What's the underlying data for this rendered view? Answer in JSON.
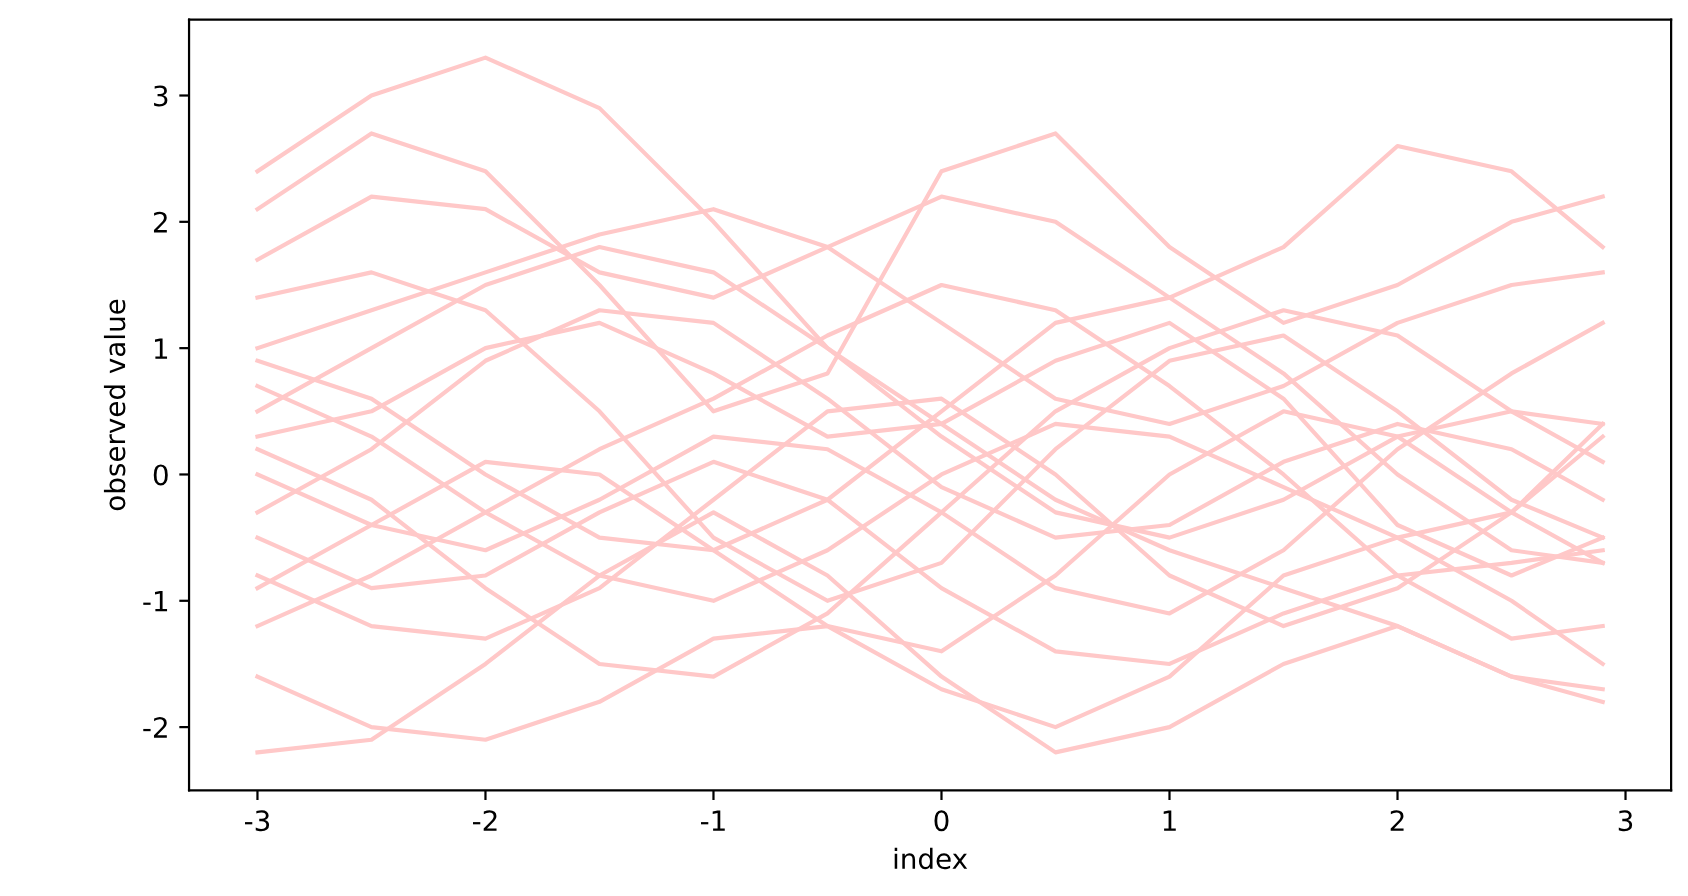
{
  "chart_data": {
    "type": "line",
    "xlabel": "index",
    "ylabel": "observed value",
    "x": [
      -3,
      -2.5,
      -2,
      -1.5,
      -1,
      -0.5,
      0,
      0.5,
      1,
      1.5,
      2,
      2.5,
      2.9
    ],
    "xlim": [
      -3.3,
      3.2
    ],
    "ylim": [
      -2.5,
      3.6
    ],
    "xticks": [
      -3,
      -2,
      -1,
      0,
      1,
      2,
      3
    ],
    "yticks": [
      -2,
      -1,
      0,
      1,
      2,
      3
    ],
    "series": [
      {
        "color": "#ffc8c8",
        "values": [
          2.4,
          3.0,
          3.3,
          2.9,
          2.0,
          1.0,
          0.3,
          -0.3,
          -0.5,
          -0.2,
          0.3,
          0.5,
          0.4
        ]
      },
      {
        "color": "#ffc8c8",
        "values": [
          2.1,
          2.7,
          2.4,
          1.5,
          0.5,
          0.8,
          2.4,
          2.7,
          1.8,
          1.2,
          1.5,
          2.0,
          2.2
        ]
      },
      {
        "color": "#ffc8c8",
        "values": [
          1.7,
          2.2,
          2.1,
          1.6,
          1.4,
          1.8,
          2.2,
          2.0,
          1.4,
          1.8,
          2.6,
          2.4,
          1.8
        ]
      },
      {
        "color": "#ffc8c8",
        "values": [
          -2.2,
          -2.1,
          -1.5,
          -0.8,
          -0.3,
          -0.8,
          -1.6,
          -2.2,
          -2.0,
          -1.5,
          -1.2,
          -1.6,
          -1.8
        ]
      },
      {
        "color": "#ffc8c8",
        "values": [
          -1.6,
          -2.0,
          -2.1,
          -1.8,
          -1.3,
          -1.2,
          -1.7,
          -2.0,
          -1.6,
          -0.8,
          -0.5,
          -1.0,
          -1.5
        ]
      },
      {
        "color": "#ffc8c8",
        "values": [
          0.3,
          0.5,
          1.0,
          1.2,
          0.8,
          0.3,
          0.4,
          0.9,
          1.2,
          0.6,
          -0.4,
          -0.8,
          -0.5
        ]
      },
      {
        "color": "#ffc8c8",
        "values": [
          -0.8,
          -1.2,
          -1.3,
          -0.9,
          -0.2,
          0.5,
          0.6,
          0.0,
          -0.8,
          -1.2,
          -0.9,
          -0.3,
          0.4
        ]
      },
      {
        "color": "#ffc8c8",
        "values": [
          1.4,
          1.6,
          1.3,
          0.5,
          -0.5,
          -1.0,
          -0.7,
          0.2,
          0.9,
          1.1,
          0.5,
          -0.2,
          -0.5
        ]
      },
      {
        "color": "#ffc8c8",
        "values": [
          0.0,
          -0.4,
          -0.6,
          -0.2,
          0.3,
          0.2,
          -0.3,
          -0.9,
          -1.1,
          -0.6,
          0.2,
          0.8,
          1.2
        ]
      },
      {
        "color": "#ffc8c8",
        "values": [
          0.9,
          0.6,
          0.0,
          -0.5,
          -0.6,
          -0.2,
          0.5,
          1.2,
          1.4,
          0.8,
          0.0,
          -0.6,
          -0.7
        ]
      },
      {
        "color": "#ffc8c8",
        "values": [
          -0.3,
          0.2,
          0.9,
          1.3,
          1.2,
          0.6,
          -0.1,
          -0.5,
          -0.4,
          0.1,
          0.4,
          0.2,
          -0.2
        ]
      },
      {
        "color": "#ffc8c8",
        "values": [
          -1.2,
          -0.8,
          -0.3,
          0.2,
          0.6,
          1.1,
          1.5,
          1.3,
          0.7,
          0.0,
          -0.8,
          -1.3,
          -1.2
        ]
      },
      {
        "color": "#ffc8c8",
        "values": [
          0.5,
          1.0,
          1.5,
          1.8,
          1.6,
          1.0,
          0.4,
          -0.2,
          -0.6,
          -0.9,
          -1.2,
          -1.6,
          -1.7
        ]
      },
      {
        "color": "#ffc8c8",
        "values": [
          -0.5,
          -0.9,
          -0.8,
          -0.3,
          0.1,
          -0.2,
          -0.9,
          -1.4,
          -1.5,
          -1.1,
          -0.8,
          -0.7,
          -0.6
        ]
      },
      {
        "color": "#ffc8c8",
        "values": [
          0.7,
          0.3,
          -0.3,
          -0.8,
          -1.0,
          -0.6,
          0.0,
          0.4,
          0.3,
          -0.1,
          -0.5,
          -0.3,
          0.3
        ]
      },
      {
        "color": "#ffc8c8",
        "values": [
          1.0,
          1.3,
          1.6,
          1.9,
          2.1,
          1.8,
          1.2,
          0.6,
          0.4,
          0.7,
          1.2,
          1.5,
          1.6
        ]
      },
      {
        "color": "#ffc8c8",
        "values": [
          -0.9,
          -0.4,
          0.1,
          0.0,
          -0.6,
          -1.2,
          -1.4,
          -0.8,
          0.0,
          0.5,
          0.3,
          -0.3,
          -0.7
        ]
      },
      {
        "color": "#ffc8c8",
        "values": [
          0.2,
          -0.2,
          -0.9,
          -1.5,
          -1.6,
          -1.1,
          -0.3,
          0.5,
          1.0,
          1.3,
          1.1,
          0.5,
          0.1
        ]
      }
    ]
  }
}
